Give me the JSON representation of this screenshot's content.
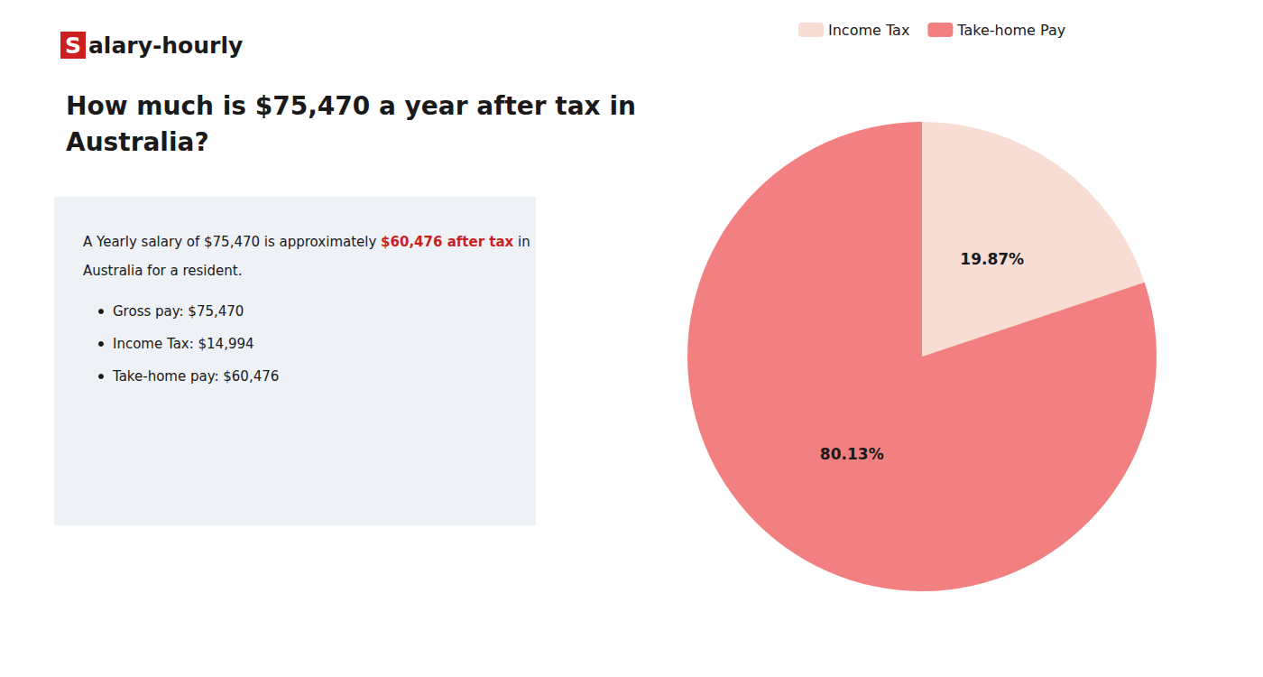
{
  "chart_data": {
    "type": "pie",
    "title": "How much is $75,470 a year after tax in\nAustralia?",
    "annotations": [
      {
        "runs": [
          {
            "text": "S",
            "color": "#cc1f1f"
          },
          {
            "text": "alary-hourly"
          }
        ]
      },
      {
        "runs": [
          {
            "text": "A Yearly salary of $75,470 is approximately "
          },
          {
            "text": "$60,476 after tax",
            "color": "#cc1f1f"
          },
          {
            "text": " in"
          }
        ]
      },
      {
        "runs": [
          {
            "text": "Australia for a resident."
          }
        ]
      },
      {
        "runs": [
          {
            "text": "Gross pay: $75,470"
          }
        ],
        "marker": "bullet"
      },
      {
        "runs": [
          {
            "text": "Income Tax: $14,994"
          }
        ],
        "marker": "bullet"
      },
      {
        "runs": [
          {
            "text": "Take-home pay: $60,476"
          }
        ],
        "marker": "bullet"
      }
    ],
    "categories": [
      "Income Tax",
      "Take-home Pay"
    ],
    "values": [
      19.87,
      80.13
    ],
    "value_labels": [
      "19.87%",
      "80.13%"
    ],
    "colors": [
      "#f7ddd4",
      "#f28080"
    ],
    "data_labels": true,
    "legend": "top"
  }
}
